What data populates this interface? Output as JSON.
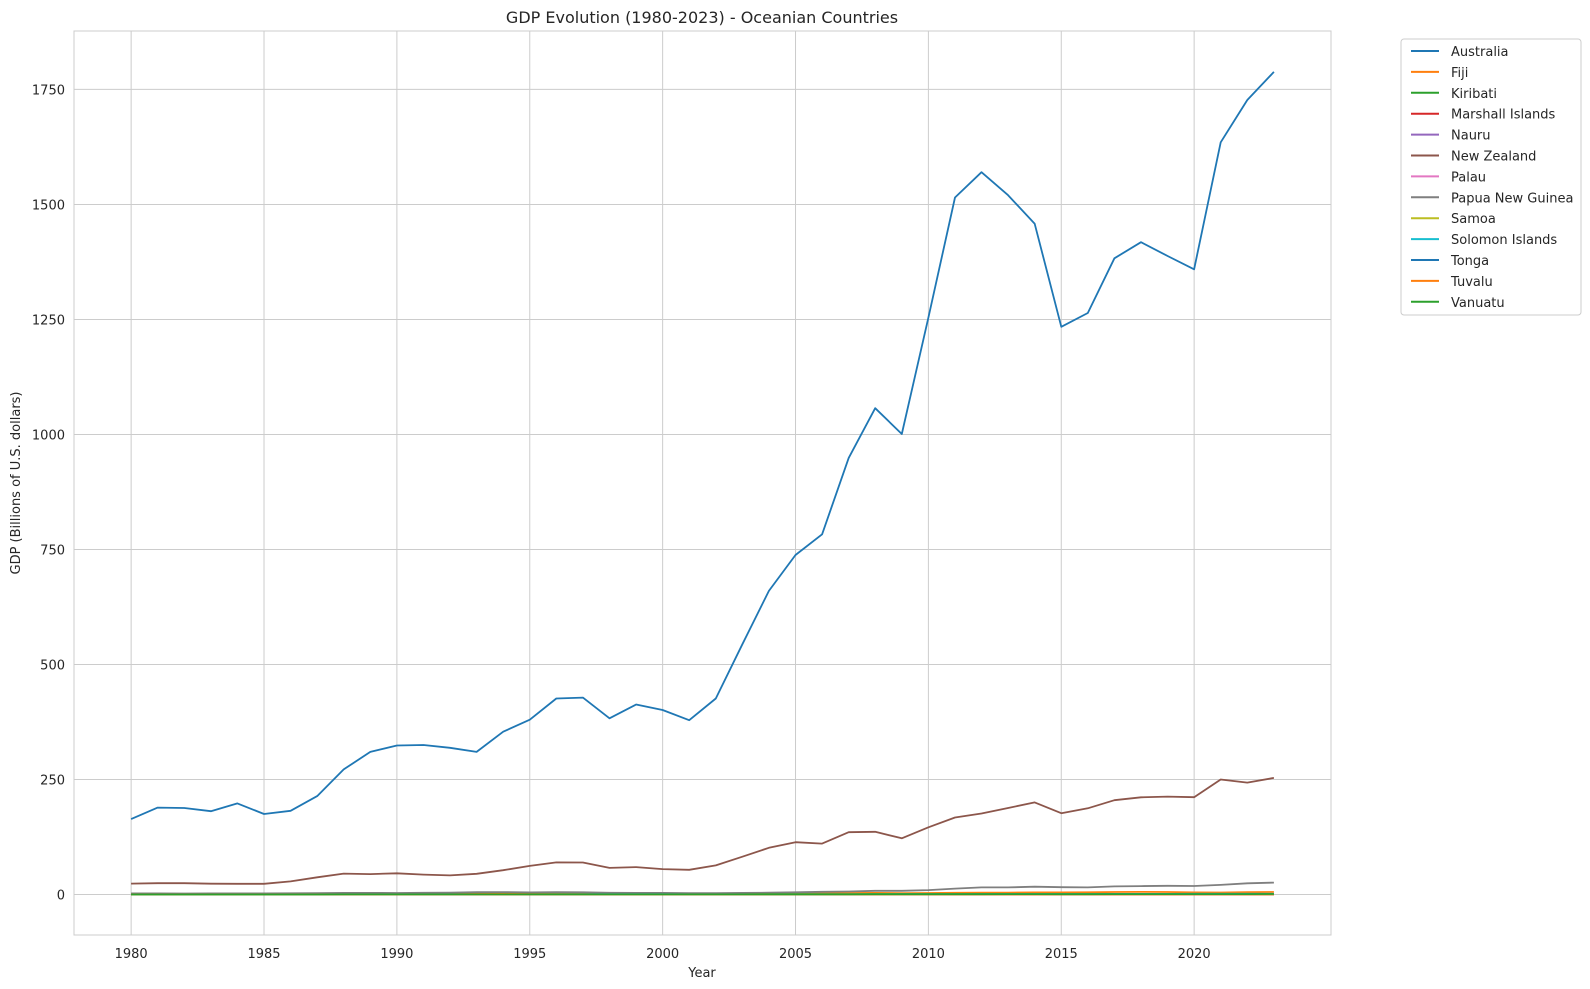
{
  "chart_data": {
    "type": "line",
    "title": "GDP Evolution (1980-2023) - Oceanian Countries",
    "xlabel": "Year",
    "ylabel": "GDP (Billions of U.S. dollars)",
    "xlim": [
      1977.85,
      2025.15
    ],
    "ylim": [
      -88,
      1877
    ],
    "xticks": [
      1980,
      1985,
      1990,
      1995,
      2000,
      2005,
      2010,
      2015,
      2020
    ],
    "yticks": [
      0,
      250,
      500,
      750,
      1000,
      1250,
      1500,
      1750
    ],
    "grid": true,
    "legend_position": "outside-top-right",
    "x": [
      1980,
      1981,
      1982,
      1983,
      1984,
      1985,
      1986,
      1987,
      1988,
      1989,
      1990,
      1991,
      1992,
      1993,
      1994,
      1995,
      1996,
      1997,
      1998,
      1999,
      2000,
      2001,
      2002,
      2003,
      2004,
      2005,
      2006,
      2007,
      2008,
      2009,
      2010,
      2011,
      2012,
      2013,
      2014,
      2015,
      2016,
      2017,
      2018,
      2019,
      2020,
      2021,
      2022,
      2023
    ],
    "series": [
      {
        "name": "Australia",
        "color": "#1f77b4",
        "values": [
          164,
          189,
          188,
          181,
          198,
          175,
          182,
          214,
          272,
          310,
          324,
          325,
          319,
          310,
          354,
          380,
          426,
          428,
          383,
          413,
          401,
          379,
          426,
          544,
          660,
          738,
          783,
          949,
          1057,
          1001,
          1254,
          1515,
          1570,
          1520,
          1458,
          1234,
          1264,
          1383,
          1418,
          1388,
          1359,
          1635,
          1727,
          1788
        ]
      },
      {
        "name": "Fiji",
        "color": "#ff7f0e",
        "values": [
          1.2,
          1.2,
          1.2,
          1.1,
          1.1,
          1.1,
          1.3,
          1.2,
          1.3,
          1.3,
          1.5,
          1.6,
          1.7,
          1.9,
          2.0,
          2.0,
          2.2,
          2.2,
          1.8,
          2.1,
          1.9,
          1.9,
          2.1,
          2.6,
          3.0,
          3.2,
          3.2,
          3.3,
          3.5,
          2.9,
          3.2,
          3.8,
          4.0,
          4.2,
          4.6,
          4.7,
          4.9,
          5.4,
          5.6,
          5.5,
          4.5,
          4.4,
          5.0,
          5.4
        ]
      },
      {
        "name": "Kiribati",
        "color": "#2ca02c",
        "values": [
          0.04,
          0.04,
          0.04,
          0.03,
          0.04,
          0.03,
          0.03,
          0.03,
          0.04,
          0.04,
          0.04,
          0.04,
          0.04,
          0.04,
          0.05,
          0.05,
          0.06,
          0.07,
          0.07,
          0.07,
          0.07,
          0.07,
          0.08,
          0.1,
          0.11,
          0.11,
          0.11,
          0.13,
          0.14,
          0.13,
          0.15,
          0.17,
          0.19,
          0.19,
          0.18,
          0.17,
          0.18,
          0.19,
          0.2,
          0.19,
          0.2,
          0.23,
          0.22,
          0.27
        ]
      },
      {
        "name": "Marshall Islands",
        "color": "#d62728",
        "values": [
          0.05,
          0.05,
          0.05,
          0.05,
          0.05,
          0.05,
          0.05,
          0.06,
          0.06,
          0.06,
          0.07,
          0.08,
          0.09,
          0.1,
          0.11,
          0.12,
          0.12,
          0.11,
          0.11,
          0.11,
          0.11,
          0.12,
          0.13,
          0.13,
          0.14,
          0.15,
          0.15,
          0.16,
          0.16,
          0.16,
          0.17,
          0.18,
          0.19,
          0.19,
          0.19,
          0.19,
          0.2,
          0.21,
          0.22,
          0.24,
          0.24,
          0.25,
          0.26,
          0.28
        ]
      },
      {
        "name": "Nauru",
        "color": "#9467bd",
        "values": [
          0.05,
          0.05,
          0.05,
          0.05,
          0.05,
          0.05,
          0.05,
          0.05,
          0.05,
          0.05,
          0.05,
          0.05,
          0.05,
          0.05,
          0.04,
          0.04,
          0.04,
          0.03,
          0.03,
          0.03,
          0.03,
          0.03,
          0.03,
          0.03,
          0.03,
          0.03,
          0.03,
          0.03,
          0.04,
          0.04,
          0.06,
          0.08,
          0.1,
          0.11,
          0.11,
          0.11,
          0.11,
          0.12,
          0.13,
          0.13,
          0.13,
          0.15,
          0.15,
          0.16
        ]
      },
      {
        "name": "New Zealand",
        "color": "#8c564b",
        "values": [
          23.7,
          24.6,
          24.5,
          23.5,
          23.2,
          23.4,
          28.6,
          37.4,
          45.5,
          44.3,
          46.1,
          43.2,
          41.5,
          45.0,
          52.8,
          62.1,
          69.9,
          69.6,
          57.9,
          59.6,
          55.2,
          53.8,
          63.3,
          82.3,
          101.6,
          113.8,
          110.7,
          135.4,
          136.3,
          122.1,
          146.2,
          167.4,
          176.2,
          188.1,
          200.3,
          176.8,
          187.5,
          205.0,
          211.3,
          212.9,
          211.6,
          249.9,
          243.3,
          253.5
        ]
      },
      {
        "name": "Palau",
        "color": "#e377c2",
        "values": [
          0.03,
          0.03,
          0.04,
          0.04,
          0.05,
          0.05,
          0.06,
          0.06,
          0.07,
          0.07,
          0.08,
          0.09,
          0.1,
          0.11,
          0.12,
          0.13,
          0.14,
          0.15,
          0.15,
          0.15,
          0.15,
          0.16,
          0.17,
          0.18,
          0.19,
          0.2,
          0.21,
          0.22,
          0.22,
          0.21,
          0.21,
          0.22,
          0.24,
          0.25,
          0.27,
          0.3,
          0.31,
          0.29,
          0.29,
          0.27,
          0.26,
          0.23,
          0.23,
          0.26
        ]
      },
      {
        "name": "Papua New Guinea",
        "color": "#7f7f7f",
        "values": [
          2.5,
          2.4,
          2.3,
          2.4,
          2.4,
          2.4,
          2.6,
          3.0,
          3.6,
          3.5,
          3.2,
          3.8,
          4.1,
          5.0,
          5.3,
          4.6,
          5.1,
          4.8,
          3.8,
          3.5,
          3.5,
          3.1,
          2.9,
          3.5,
          3.9,
          4.9,
          5.9,
          6.6,
          8.0,
          8.0,
          9.7,
          12.9,
          15.4,
          15.4,
          17.0,
          16.0,
          15.5,
          17.6,
          18.4,
          18.9,
          18.5,
          20.9,
          24.3,
          25.8
        ]
      },
      {
        "name": "Samoa",
        "color": "#bcbd22",
        "values": [
          0.12,
          0.11,
          0.11,
          0.11,
          0.1,
          0.1,
          0.1,
          0.11,
          0.12,
          0.12,
          0.12,
          0.13,
          0.14,
          0.15,
          0.15,
          0.17,
          0.2,
          0.21,
          0.21,
          0.21,
          0.22,
          0.23,
          0.25,
          0.3,
          0.36,
          0.42,
          0.46,
          0.54,
          0.63,
          0.58,
          0.64,
          0.72,
          0.76,
          0.78,
          0.79,
          0.8,
          0.81,
          0.85,
          0.87,
          0.9,
          0.87,
          0.84,
          0.83,
          0.94
        ]
      },
      {
        "name": "Solomon Islands",
        "color": "#17becf",
        "values": [
          0.16,
          0.18,
          0.17,
          0.16,
          0.2,
          0.17,
          0.15,
          0.15,
          0.18,
          0.19,
          0.2,
          0.22,
          0.24,
          0.27,
          0.31,
          0.35,
          0.39,
          0.42,
          0.38,
          0.39,
          0.36,
          0.32,
          0.29,
          0.3,
          0.35,
          0.39,
          0.45,
          0.53,
          0.61,
          0.59,
          0.69,
          0.88,
          1.03,
          1.11,
          1.14,
          1.11,
          1.16,
          1.25,
          1.39,
          1.44,
          1.49,
          1.6,
          1.59,
          1.63
        ]
      },
      {
        "name": "Tonga",
        "color": "#1f77b4",
        "values": [
          0.04,
          0.05,
          0.05,
          0.05,
          0.05,
          0.05,
          0.06,
          0.07,
          0.08,
          0.09,
          0.09,
          0.11,
          0.13,
          0.14,
          0.15,
          0.16,
          0.17,
          0.17,
          0.16,
          0.16,
          0.17,
          0.16,
          0.17,
          0.2,
          0.24,
          0.27,
          0.3,
          0.32,
          0.35,
          0.36,
          0.37,
          0.43,
          0.47,
          0.45,
          0.44,
          0.44,
          0.42,
          0.45,
          0.49,
          0.51,
          0.51,
          0.47,
          0.49,
          0.53
        ]
      },
      {
        "name": "Tuvalu",
        "color": "#ff7f0e",
        "values": [
          0.01,
          0.01,
          0.01,
          0.01,
          0.01,
          0.01,
          0.01,
          0.01,
          0.01,
          0.01,
          0.01,
          0.01,
          0.01,
          0.01,
          0.01,
          0.01,
          0.01,
          0.01,
          0.01,
          0.01,
          0.01,
          0.01,
          0.01,
          0.02,
          0.02,
          0.02,
          0.02,
          0.02,
          0.03,
          0.03,
          0.03,
          0.04,
          0.04,
          0.04,
          0.04,
          0.04,
          0.04,
          0.05,
          0.05,
          0.05,
          0.05,
          0.06,
          0.06,
          0.06
        ]
      },
      {
        "name": "Vanuatu",
        "color": "#2ca02c",
        "values": [
          0.12,
          0.12,
          0.13,
          0.14,
          0.14,
          0.13,
          0.12,
          0.13,
          0.15,
          0.15,
          0.18,
          0.19,
          0.2,
          0.19,
          0.2,
          0.22,
          0.23,
          0.24,
          0.25,
          0.25,
          0.27,
          0.26,
          0.26,
          0.31,
          0.36,
          0.39,
          0.43,
          0.52,
          0.6,
          0.61,
          0.7,
          0.78,
          0.78,
          0.8,
          0.81,
          0.74,
          0.78,
          0.88,
          0.92,
          0.93,
          0.9,
          0.96,
          0.98,
          1.07
        ]
      }
    ]
  }
}
